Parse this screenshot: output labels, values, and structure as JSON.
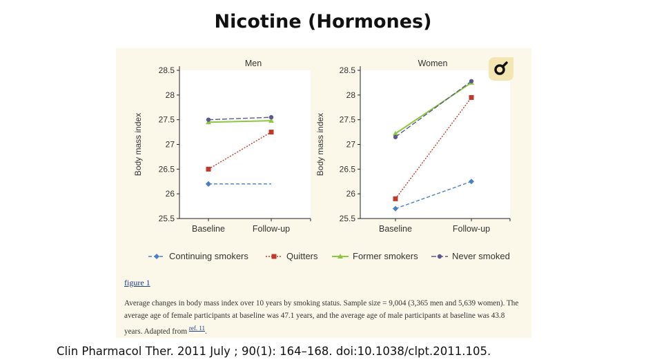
{
  "slide": {
    "title": "Nicotine (Hormones)",
    "citation": "Clin Pharmacol Ther. 2011 July ; 90(1): 164–168. doi:10.1038/clpt.2011.105."
  },
  "figure": {
    "link_label": "figure 1",
    "caption": "Average changes in body mass index over 10 years by smoking status. Sample size = 9,004 (3,365 men and 5,639 women). The average age of female participants at baseline was 47.1 years, and the average age of male participants at baseline was 43.8 years. Adapted from",
    "ref_label": "ref. 11",
    "caption_end": "."
  },
  "badge_icon": "magnifier-icon",
  "legend": [
    {
      "name": "Continuing smokers",
      "color": "#4a7fc7",
      "marker": "diamond",
      "dash": "dashed"
    },
    {
      "name": "Quitters",
      "color": "#c0392b",
      "marker": "square",
      "dash": "dotted"
    },
    {
      "name": "Former smokers",
      "color": "#8dc63f",
      "marker": "triangle",
      "dash": "solid"
    },
    {
      "name": "Never smoked",
      "color": "#5a5a8c",
      "marker": "circle",
      "dash": "longdash"
    }
  ],
  "chart_data": [
    {
      "type": "line",
      "title": "Men",
      "ylabel": "Body mass index",
      "categories": [
        "Baseline",
        "Follow-up"
      ],
      "ylim": [
        25.5,
        28.5
      ],
      "yticks": [
        "25.5",
        "26",
        "26.5",
        "27",
        "27.5",
        "28",
        "28.5"
      ],
      "series": [
        {
          "name": "Continuing smokers",
          "values": [
            26.2,
            26.2
          ]
        },
        {
          "name": "Quitters",
          "values": [
            26.5,
            27.25
          ]
        },
        {
          "name": "Former smokers",
          "values": [
            27.45,
            27.48
          ]
        },
        {
          "name": "Never smoked",
          "values": [
            27.5,
            27.55
          ]
        }
      ]
    },
    {
      "type": "line",
      "title": "Women",
      "ylabel": "Body mass index",
      "categories": [
        "Baseline",
        "Follow-up"
      ],
      "ylim": [
        25.5,
        28.5
      ],
      "yticks": [
        "25.5",
        "26",
        "26.5",
        "27",
        "27.5",
        "28",
        "28.5"
      ],
      "series": [
        {
          "name": "Continuing smokers",
          "values": [
            25.7,
            26.25
          ]
        },
        {
          "name": "Quitters",
          "values": [
            25.9,
            27.95
          ]
        },
        {
          "name": "Former smokers",
          "values": [
            27.22,
            28.25
          ]
        },
        {
          "name": "Never smoked",
          "values": [
            27.15,
            28.28
          ]
        }
      ]
    }
  ]
}
